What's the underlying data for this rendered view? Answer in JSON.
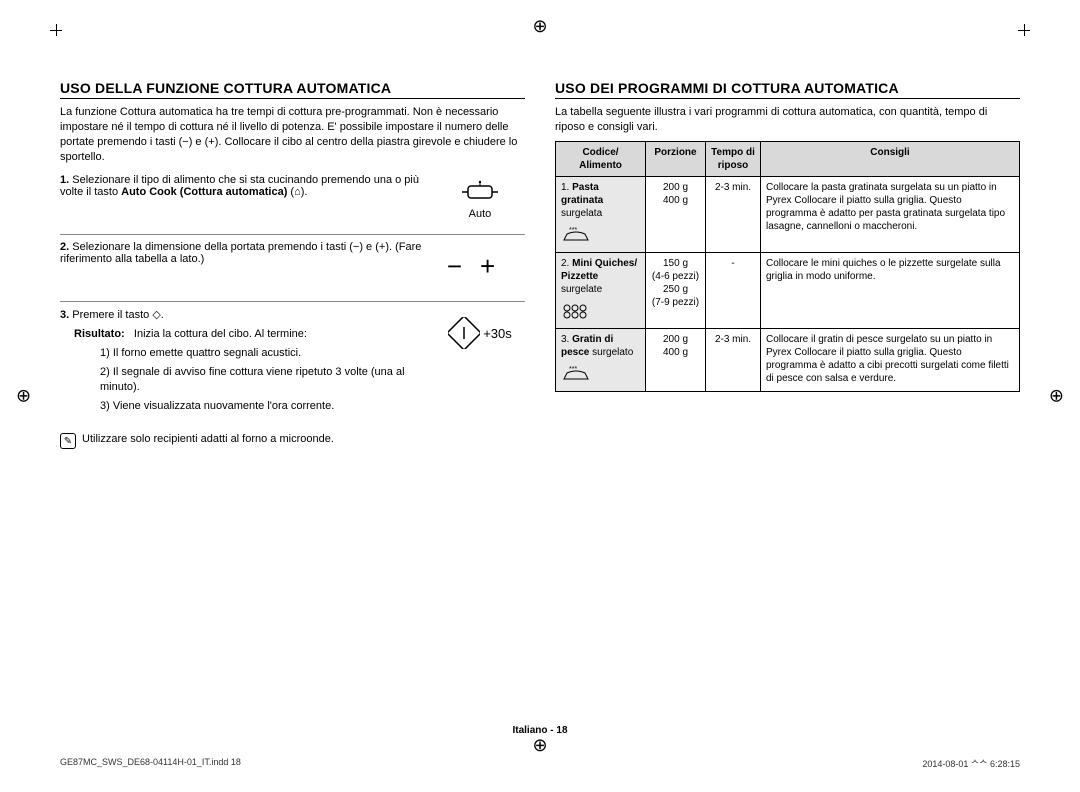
{
  "left": {
    "heading": "USO DELLA FUNZIONE COTTURA AUTOMATICA",
    "intro1": "La funzione Cottura automatica ha tre tempi di cottura pre-programmati.",
    "intro2": "Non è necessario impostare né il tempo di cottura né il livello di potenza.",
    "intro3": "E' possibile impostare il numero delle portate premendo i tasti (−) e (+).",
    "intro4": "Collocare il cibo al centro della piastra girevole e chiudere lo sportello.",
    "step1_num": "1.",
    "step1": "Selezionare il tipo di alimento che si sta cucinando premendo una o più volte il tasto ",
    "step1_bold": "Auto Cook (Cottura automatica)",
    "step1_end": " (⌂).",
    "step1_icon_label": "Auto",
    "step2_num": "2.",
    "step2": "Selezionare la dimensione della portata premendo i tasti (−) e (+). (Fare riferimento alla tabella a lato.)",
    "step3_num": "3.",
    "step3": "Premere il tasto ◇.",
    "risultato_label": "Risultato:",
    "risultato_text": "Inizia la cottura del cibo. Al termine:",
    "r1": "1) Il forno emette quattro segnali acustici.",
    "r2": "2) Il segnale di avviso fine cottura viene ripetuto 3 volte (una al minuto).",
    "r3": "3) Viene visualizzata nuovamente l'ora corrente.",
    "note": "Utilizzare solo recipienti adatti al forno a microonde.",
    "plus30": "+30s"
  },
  "right": {
    "heading": "USO DEI PROGRAMMI DI COTTURA AUTOMATICA",
    "intro": "La tabella seguente illustra i vari programmi di cottura automatica, con quantità, tempo di riposo e consigli vari.",
    "th1": "Codice/\nAlimento",
    "th2": "Porzione",
    "th3": "Tempo di\nriposo",
    "th4": "Consigli",
    "rows": [
      {
        "code": "1. Pasta gratinata surgelata",
        "code_parts": {
          "num": "1.",
          "bold": "Pasta gratinata",
          "rest": "surgelata"
        },
        "porz": "200 g\n400 g",
        "tempo": "2-3 min.",
        "cons": "Collocare la pasta gratinata surgelata su un piatto in Pyrex Collocare il piatto sulla griglia. Questo programma è adatto per pasta gratinata surgelata tipo lasagne, cannelloni o maccheroni."
      },
      {
        "code_parts": {
          "num": "2.",
          "bold": "Mini Quiches/ Pizzette",
          "rest": "surgelate"
        },
        "porz": "150 g\n(4-6 pezzi)\n250 g\n(7-9 pezzi)",
        "tempo": "-",
        "cons": "Collocare le mini quiches o le pizzette surgelate sulla griglia in modo uniforme."
      },
      {
        "code_parts": {
          "num": "3.",
          "bold": "Gratin di pesce",
          "rest": "surgelato"
        },
        "porz": "200 g\n400 g",
        "tempo": "2-3 min.",
        "cons": "Collocare il gratin di pesce surgelato su un piatto in Pyrex Collocare il piatto sulla griglia. Questo programma è adatto a cibi precotti surgelati come filetti di pesce con salsa e verdure."
      }
    ]
  },
  "footer_page": "Italiano - 18",
  "footer_left": "GE87MC_SWS_DE68-04114H-01_IT.indd   18",
  "footer_right": "2014-08-01   ᄉᄉ 6:28:15"
}
